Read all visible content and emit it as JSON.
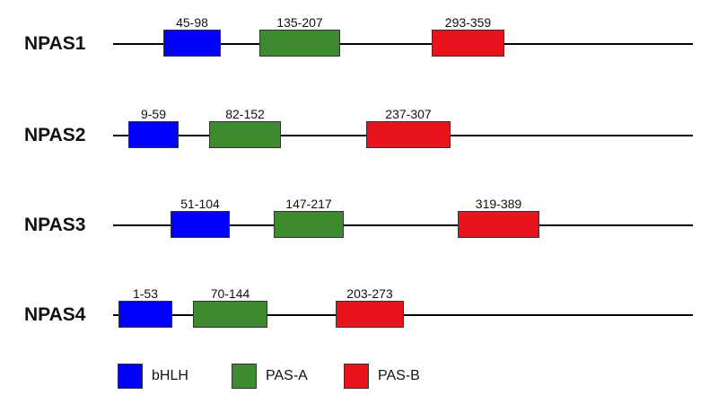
{
  "colors": {
    "bhlh": "#0000ff",
    "pas_a": "#3d8b2e",
    "pas_b": "#e8141b"
  },
  "proteins": [
    {
      "name": "NPAS1",
      "domains": [
        {
          "type": "bhlh",
          "label": "45-98"
        },
        {
          "type": "pas_a",
          "label": "135-207"
        },
        {
          "type": "pas_b",
          "label": "293-359"
        }
      ]
    },
    {
      "name": "NPAS2",
      "domains": [
        {
          "type": "bhlh",
          "label": "9-59"
        },
        {
          "type": "pas_a",
          "label": "82-152"
        },
        {
          "type": "pas_b",
          "label": "237-307"
        }
      ]
    },
    {
      "name": "NPAS3",
      "domains": [
        {
          "type": "bhlh",
          "label": "51-104"
        },
        {
          "type": "pas_a",
          "label": "147-217"
        },
        {
          "type": "pas_b",
          "label": "319-389"
        }
      ]
    },
    {
      "name": "NPAS4",
      "domains": [
        {
          "type": "bhlh",
          "label": "1-53"
        },
        {
          "type": "pas_a",
          "label": "70-144"
        },
        {
          "type": "pas_b",
          "label": "203-273"
        }
      ]
    }
  ],
  "legend": [
    {
      "type": "bhlh",
      "label": "bHLH"
    },
    {
      "type": "pas_a",
      "label": "PAS-A"
    },
    {
      "type": "pas_b",
      "label": "PAS-B"
    }
  ]
}
